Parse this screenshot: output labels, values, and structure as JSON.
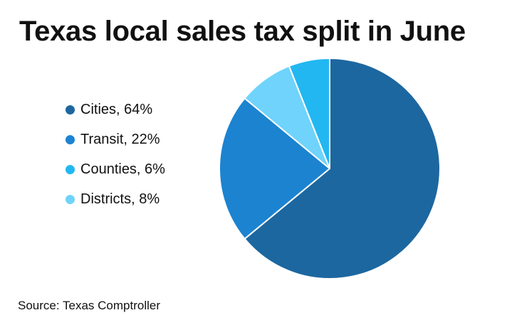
{
  "chart_data": {
    "type": "pie",
    "title": "Texas local sales tax split in June",
    "source": "Source: Texas Comptroller",
    "legend_position": "left",
    "slices": [
      {
        "label": "Cities, 64%",
        "value": 64,
        "color": "#1c67a0"
      },
      {
        "label": "Transit, 22%",
        "value": 22,
        "color": "#1c83d1"
      },
      {
        "label": "Districts, 8%",
        "value": 8,
        "color": "#6fd3fb"
      },
      {
        "label": "Counties, 6%",
        "value": 6,
        "color": "#22b7f1"
      }
    ],
    "legend": [
      {
        "label": "Cities, 64%",
        "color": "#1c67a0"
      },
      {
        "label": "Transit, 22%",
        "color": "#1c83d1"
      },
      {
        "label": "Counties, 6%",
        "color": "#22b7f1"
      },
      {
        "label": "Districts, 8%",
        "color": "#6fd3fb"
      }
    ]
  }
}
